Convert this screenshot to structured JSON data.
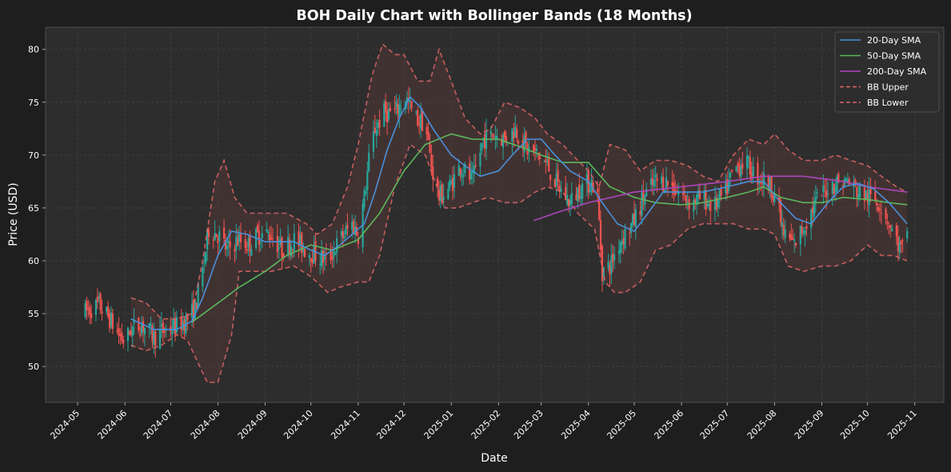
{
  "chart_data": {
    "type": "candlestick",
    "title": "BOH Daily Chart with Bollinger Bands (18 Months)",
    "xlabel": "Date",
    "ylabel": "Price (USD)",
    "ylim": [
      46.6,
      82.1
    ],
    "xlim": [
      "2024-04-10",
      "2025-11-20"
    ],
    "grid": true,
    "legend_position": "top-right",
    "x_ticks": [
      "2024-05",
      "2024-06",
      "2024-07",
      "2024-08",
      "2024-09",
      "2024-10",
      "2024-11",
      "2024-12",
      "2025-01",
      "2025-02",
      "2025-03",
      "2025-04",
      "2025-05",
      "2025-06",
      "2025-07",
      "2025-08",
      "2025-09",
      "2025-10",
      "2025-11"
    ],
    "y_ticks": [
      50,
      55,
      60,
      65,
      70,
      75,
      80
    ],
    "colors": {
      "background": "#1e1e1e",
      "axes_bg": "#2d2d2d",
      "up_candle": "#26a69a",
      "down_candle": "#ef5350",
      "sma20": "#4a90d9",
      "sma50": "#5cb85c",
      "sma200": "#ab47bc",
      "bb_line": "#e06666",
      "bb_fill": "#5a3a3a"
    },
    "legend": [
      {
        "label": "20-Day SMA",
        "color": "#4a90d9",
        "style": "solid"
      },
      {
        "label": "50-Day SMA",
        "color": "#5cb85c",
        "style": "solid"
      },
      {
        "label": "200-Day SMA",
        "color": "#ab47bc",
        "style": "solid"
      },
      {
        "label": "BB Upper",
        "color": "#e06666",
        "style": "dashed"
      },
      {
        "label": "BB Lower",
        "color": "#e06666",
        "style": "dashed"
      }
    ],
    "price_anchors": {
      "dates": [
        "2024-05-05",
        "2024-05-15",
        "2024-05-22",
        "2024-05-28",
        "2024-06-01",
        "2024-06-05",
        "2024-06-12",
        "2024-06-20",
        "2024-06-28",
        "2024-07-05",
        "2024-07-12",
        "2024-07-17",
        "2024-07-22",
        "2024-07-26",
        "2024-08-01",
        "2024-08-07",
        "2024-08-14",
        "2024-08-21",
        "2024-08-28",
        "2024-09-05",
        "2024-09-12",
        "2024-09-20",
        "2024-09-28",
        "2024-10-05",
        "2024-10-12",
        "2024-10-20",
        "2024-10-28",
        "2024-11-01",
        "2024-11-05",
        "2024-11-08",
        "2024-11-12",
        "2024-11-18",
        "2024-11-25",
        "2024-12-02",
        "2024-12-08",
        "2024-12-15",
        "2024-12-19",
        "2024-12-24",
        "2024-12-31",
        "2025-01-07",
        "2025-01-15",
        "2025-01-22",
        "2025-01-30",
        "2025-02-05",
        "2025-02-12",
        "2025-02-20",
        "2025-02-27",
        "2025-03-05",
        "2025-03-12",
        "2025-03-20",
        "2025-03-27",
        "2025-04-03",
        "2025-04-07",
        "2025-04-10",
        "2025-04-15",
        "2025-04-22",
        "2025-04-30",
        "2025-05-07",
        "2025-05-15",
        "2025-05-22",
        "2025-05-30",
        "2025-06-07",
        "2025-06-15",
        "2025-06-22",
        "2025-06-30",
        "2025-07-05",
        "2025-07-12",
        "2025-07-20",
        "2025-07-27",
        "2025-08-01",
        "2025-08-07",
        "2025-08-14",
        "2025-08-21",
        "2025-08-28",
        "2025-09-05",
        "2025-09-12",
        "2025-09-18",
        "2025-09-25",
        "2025-10-02",
        "2025-10-09",
        "2025-10-14",
        "2025-10-18",
        "2025-10-23",
        "2025-10-27"
      ],
      "close": [
        55.1,
        55.8,
        54.5,
        53.0,
        52.3,
        53.5,
        54.0,
        52.8,
        53.5,
        53.8,
        54.5,
        55.5,
        59.0,
        63.0,
        62.5,
        61.0,
        62.0,
        61.5,
        62.5,
        62.5,
        61.0,
        62.0,
        61.0,
        60.5,
        60.0,
        62.0,
        63.5,
        62.5,
        66.0,
        69.5,
        72.5,
        74.0,
        74.0,
        75.5,
        73.5,
        73.0,
        69.0,
        66.0,
        67.0,
        69.0,
        67.5,
        71.5,
        72.0,
        71.5,
        72.5,
        70.5,
        70.0,
        69.0,
        67.0,
        65.5,
        67.0,
        67.5,
        66.0,
        59.0,
        59.5,
        62.0,
        63.5,
        66.0,
        67.5,
        67.5,
        66.5,
        65.5,
        66.0,
        65.0,
        66.5,
        68.5,
        69.5,
        68.0,
        67.5,
        66.5,
        62.5,
        61.5,
        63.5,
        65.5,
        67.0,
        67.5,
        67.5,
        66.5,
        66.0,
        65.5,
        64.0,
        62.5,
        61.0,
        62.0
      ]
    },
    "sma20_anchors": {
      "dates": [
        "2024-06-05",
        "2024-06-20",
        "2024-07-05",
        "2024-07-15",
        "2024-07-22",
        "2024-08-01",
        "2024-08-10",
        "2024-08-20",
        "2024-09-01",
        "2024-09-20",
        "2024-10-01",
        "2024-10-10",
        "2024-10-20",
        "2024-11-05",
        "2024-11-12",
        "2024-11-20",
        "2024-11-28",
        "2024-12-05",
        "2024-12-12",
        "2024-12-20",
        "2025-01-01",
        "2025-01-10",
        "2025-01-20",
        "2025-02-01",
        "2025-02-10",
        "2025-02-20",
        "2025-03-01",
        "2025-03-10",
        "2025-03-20",
        "2025-04-01",
        "2025-04-10",
        "2025-04-20",
        "2025-05-01",
        "2025-05-10",
        "2025-05-20",
        "2025-06-01",
        "2025-06-15",
        "2025-07-01",
        "2025-07-15",
        "2025-07-25",
        "2025-08-05",
        "2025-08-15",
        "2025-08-25",
        "2025-09-05",
        "2025-09-15",
        "2025-09-25",
        "2025-10-05",
        "2025-10-15",
        "2025-10-27"
      ],
      "values": [
        54.5,
        53.5,
        53.5,
        54.3,
        56.5,
        60.5,
        62.8,
        62.5,
        61.8,
        61.8,
        61.0,
        60.5,
        61.5,
        63.5,
        66.5,
        70.5,
        73.5,
        75.5,
        74.5,
        72.5,
        70.0,
        69.0,
        68.0,
        68.5,
        70.0,
        71.5,
        71.5,
        70.0,
        68.5,
        67.5,
        65.5,
        63.5,
        62.8,
        64.5,
        66.5,
        66.5,
        66.5,
        67.0,
        67.5,
        67.5,
        65.5,
        64.0,
        63.5,
        65.5,
        67.0,
        67.3,
        66.8,
        65.5,
        63.5
      ]
    },
    "sma50_anchors": {
      "dates": [
        "2024-07-15",
        "2024-08-01",
        "2024-08-15",
        "2024-09-01",
        "2024-09-15",
        "2024-10-01",
        "2024-10-15",
        "2024-11-01",
        "2024-11-15",
        "2024-12-01",
        "2024-12-15",
        "2025-01-01",
        "2025-01-15",
        "2025-02-01",
        "2025-02-15",
        "2025-03-01",
        "2025-03-15",
        "2025-04-01",
        "2025-04-15",
        "2025-05-01",
        "2025-05-15",
        "2025-06-01",
        "2025-06-15",
        "2025-07-01",
        "2025-07-15",
        "2025-07-25",
        "2025-08-05",
        "2025-08-20",
        "2025-09-01",
        "2025-09-15",
        "2025-10-01",
        "2025-10-15",
        "2025-10-27"
      ],
      "values": [
        54.2,
        56.0,
        57.5,
        59.0,
        60.5,
        61.5,
        61.0,
        62.0,
        64.5,
        68.5,
        71.0,
        72.0,
        71.5,
        71.5,
        70.8,
        70.0,
        69.3,
        69.3,
        67.0,
        66.0,
        65.5,
        65.3,
        65.5,
        66.0,
        66.5,
        67.0,
        66.0,
        65.5,
        65.5,
        66.0,
        65.8,
        65.5,
        65.3
      ]
    },
    "sma200_anchors": {
      "dates": [
        "2025-02-24",
        "2025-03-10",
        "2025-04-01",
        "2025-05-01",
        "2025-06-01",
        "2025-07-01",
        "2025-07-25",
        "2025-08-20",
        "2025-09-15",
        "2025-10-01",
        "2025-10-27"
      ],
      "values": [
        63.8,
        64.5,
        65.5,
        66.5,
        67.0,
        67.5,
        68.0,
        68.0,
        67.5,
        67.0,
        66.5
      ]
    },
    "bb_upper_anchors": {
      "dates": [
        "2024-06-05",
        "2024-06-15",
        "2024-06-25",
        "2024-07-05",
        "2024-07-15",
        "2024-07-22",
        "2024-07-30",
        "2024-08-05",
        "2024-08-12",
        "2024-08-20",
        "2024-09-01",
        "2024-09-15",
        "2024-09-28",
        "2024-10-05",
        "2024-10-15",
        "2024-10-25",
        "2024-11-01",
        "2024-11-10",
        "2024-11-17",
        "2024-11-25",
        "2024-12-01",
        "2024-12-10",
        "2024-12-18",
        "2024-12-24",
        "2025-01-01",
        "2025-01-10",
        "2025-01-20",
        "2025-01-27",
        "2025-02-05",
        "2025-02-15",
        "2025-02-25",
        "2025-03-05",
        "2025-03-15",
        "2025-03-25",
        "2025-04-01",
        "2025-04-08",
        "2025-04-15",
        "2025-04-25",
        "2025-05-05",
        "2025-05-15",
        "2025-05-25",
        "2025-06-05",
        "2025-06-15",
        "2025-06-25",
        "2025-07-05",
        "2025-07-15",
        "2025-07-25",
        "2025-08-01",
        "2025-08-10",
        "2025-08-20",
        "2025-09-01",
        "2025-09-10",
        "2025-09-20",
        "2025-10-01",
        "2025-10-10",
        "2025-10-20",
        "2025-10-27"
      ],
      "values": [
        56.5,
        56.0,
        54.5,
        54.5,
        55.0,
        60.0,
        67.5,
        69.5,
        66.0,
        64.5,
        64.5,
        64.5,
        63.5,
        62.5,
        63.5,
        67.0,
        71.0,
        77.5,
        80.5,
        79.5,
        79.5,
        77.0,
        77.0,
        80.0,
        77.0,
        73.5,
        72.0,
        72.5,
        75.0,
        74.5,
        73.5,
        72.0,
        71.0,
        69.5,
        68.5,
        67.0,
        71.0,
        70.5,
        68.5,
        69.5,
        69.5,
        69.0,
        68.0,
        67.5,
        70.0,
        71.5,
        71.0,
        72.0,
        70.5,
        69.5,
        69.5,
        70.0,
        69.5,
        69.0,
        68.0,
        67.0,
        66.5
      ]
    },
    "bb_lower_anchors": {
      "dates": [
        "2024-06-05",
        "2024-06-15",
        "2024-06-25",
        "2024-07-05",
        "2024-07-12",
        "2024-07-20",
        "2024-07-25",
        "2024-08-01",
        "2024-08-10",
        "2024-08-15",
        "2024-08-25",
        "2024-09-05",
        "2024-09-20",
        "2024-10-01",
        "2024-10-12",
        "2024-10-20",
        "2024-11-01",
        "2024-11-08",
        "2024-11-15",
        "2024-11-25",
        "2024-12-05",
        "2024-12-15",
        "2024-12-20",
        "2024-12-28",
        "2025-01-05",
        "2025-01-15",
        "2025-01-25",
        "2025-02-05",
        "2025-02-15",
        "2025-02-25",
        "2025-03-05",
        "2025-03-15",
        "2025-03-25",
        "2025-04-05",
        "2025-04-12",
        "2025-04-18",
        "2025-04-25",
        "2025-05-05",
        "2025-05-15",
        "2025-05-25",
        "2025-06-05",
        "2025-06-15",
        "2025-06-25",
        "2025-07-05",
        "2025-07-15",
        "2025-07-25",
        "2025-08-01",
        "2025-08-10",
        "2025-08-20",
        "2025-09-01",
        "2025-09-10",
        "2025-09-20",
        "2025-10-01",
        "2025-10-10",
        "2025-10-18",
        "2025-10-27"
      ],
      "values": [
        52.0,
        51.5,
        52.0,
        53.0,
        52.5,
        50.0,
        48.5,
        48.5,
        53.0,
        59.0,
        59.0,
        59.0,
        59.5,
        58.5,
        57.0,
        57.5,
        58.0,
        58.0,
        60.5,
        67.0,
        71.0,
        70.0,
        68.0,
        65.0,
        65.0,
        65.5,
        66.0,
        65.5,
        65.5,
        66.5,
        67.0,
        66.5,
        64.5,
        63.0,
        58.0,
        57.0,
        57.0,
        58.0,
        61.0,
        61.5,
        63.0,
        63.5,
        63.5,
        63.5,
        63.0,
        63.0,
        62.5,
        59.5,
        59.0,
        59.5,
        59.5,
        60.0,
        61.5,
        60.5,
        60.5,
        60.0
      ]
    }
  }
}
